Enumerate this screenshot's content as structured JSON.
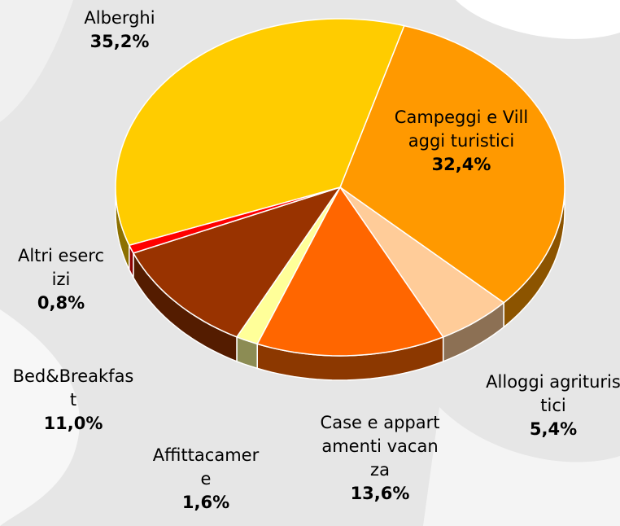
{
  "chart_data": {
    "type": "pie3d",
    "categories": [
      "Campeggi e Villaggi turistici",
      "Alloggi agrituristici",
      "Case e appartamenti vacanza",
      "Affittacamere",
      "Bed&Breakfast",
      "Altri esercizi",
      "Alberghi"
    ],
    "values": [
      32.4,
      5.4,
      13.6,
      1.6,
      11.0,
      0.8,
      35.2
    ],
    "value_labels": [
      "32,4%",
      "5,4%",
      "13,6%",
      "1,6%",
      "11,0%",
      "0,8%",
      "35,2%"
    ],
    "colors": [
      "#ff9900",
      "#ffcc99",
      "#ff6600",
      "#ffff99",
      "#993300",
      "#ff0000",
      "#ffcc00"
    ]
  }
}
